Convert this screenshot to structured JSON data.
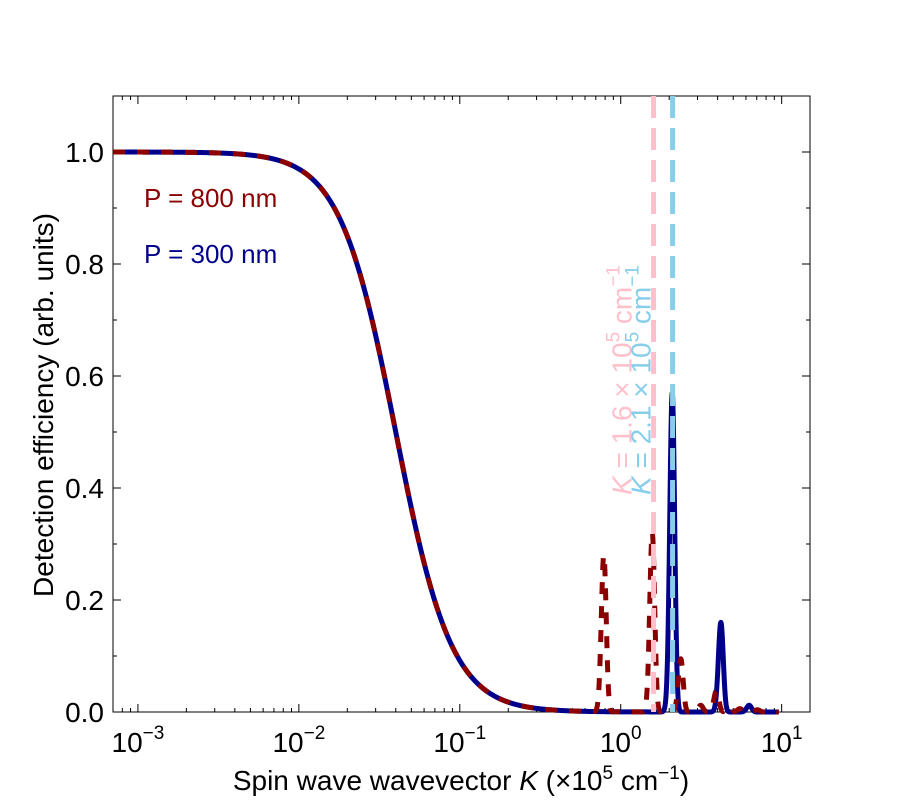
{
  "chart_data": {
    "type": "line",
    "xlabel": {
      "prefix": "Spin wave wavevector ",
      "var": "K",
      "unit_pre": " (×10",
      "unit_exp": "5",
      "unit_mid": " cm",
      "unit_exp2": "−1",
      "unit_post": ")"
    },
    "ylabel": "Detection efficiency (arb. units)",
    "xscale": "log",
    "xlim": [
      0.0007,
      15
    ],
    "ylim": [
      0,
      1.1
    ],
    "x_ticks": [
      {
        "value": 0.001,
        "base": "10",
        "exp": "−3"
      },
      {
        "value": 0.01,
        "base": "10",
        "exp": "−2"
      },
      {
        "value": 0.1,
        "base": "10",
        "exp": "−1"
      },
      {
        "value": 1,
        "base": "10",
        "exp": "0"
      },
      {
        "value": 10,
        "base": "10",
        "exp": "1"
      }
    ],
    "y_ticks": [
      {
        "value": 0.0,
        "label": "0.0"
      },
      {
        "value": 0.2,
        "label": "0.2"
      },
      {
        "value": 0.4,
        "label": "0.4"
      },
      {
        "value": 0.6,
        "label": "0.6"
      },
      {
        "value": 0.8,
        "label": "0.8"
      },
      {
        "value": 1.0,
        "label": "1.0"
      }
    ],
    "series": [
      {
        "name": "P = 800 nm",
        "color": "#8b0000",
        "low_k_rolloff": {
          "k0": 0.04,
          "power": 2.5
        },
        "peaks": [
          {
            "x": 0.785,
            "y": 0.28
          },
          {
            "x": 1.57,
            "y": 0.32
          },
          {
            "x": 2.36,
            "y": 0.095
          },
          {
            "x": 3.14,
            "y": 0.012
          },
          {
            "x": 3.93,
            "y": 0.038
          },
          {
            "x": 4.71,
            "y": 0.01
          },
          {
            "x": 5.5,
            "y": 0.006
          },
          {
            "x": 7.07,
            "y": 0.004
          },
          {
            "x": 8.64,
            "y": 0.003
          }
        ]
      },
      {
        "name": "P = 300 nm",
        "color": "#00008b",
        "low_k_rolloff": {
          "k0": 0.04,
          "power": 2.5
        },
        "peaks": [
          {
            "x": 2.09,
            "y": 0.57
          },
          {
            "x": 4.19,
            "y": 0.16
          },
          {
            "x": 6.28,
            "y": 0.012
          }
        ]
      }
    ],
    "reference_lines": [
      {
        "x": 1.6,
        "color": "#ffc0cb",
        "var": "K",
        "text": " = 1.6 × 10",
        "exp": "5",
        "unit": " cm",
        "unit_exp": "−1"
      },
      {
        "x": 2.1,
        "color": "#87ceeb",
        "var": "K",
        "text": " = 2.1 × 10",
        "exp": "5",
        "unit": " cm",
        "unit_exp": "−1"
      }
    ],
    "legend_placement": "upper-left, text only",
    "grid": false
  }
}
